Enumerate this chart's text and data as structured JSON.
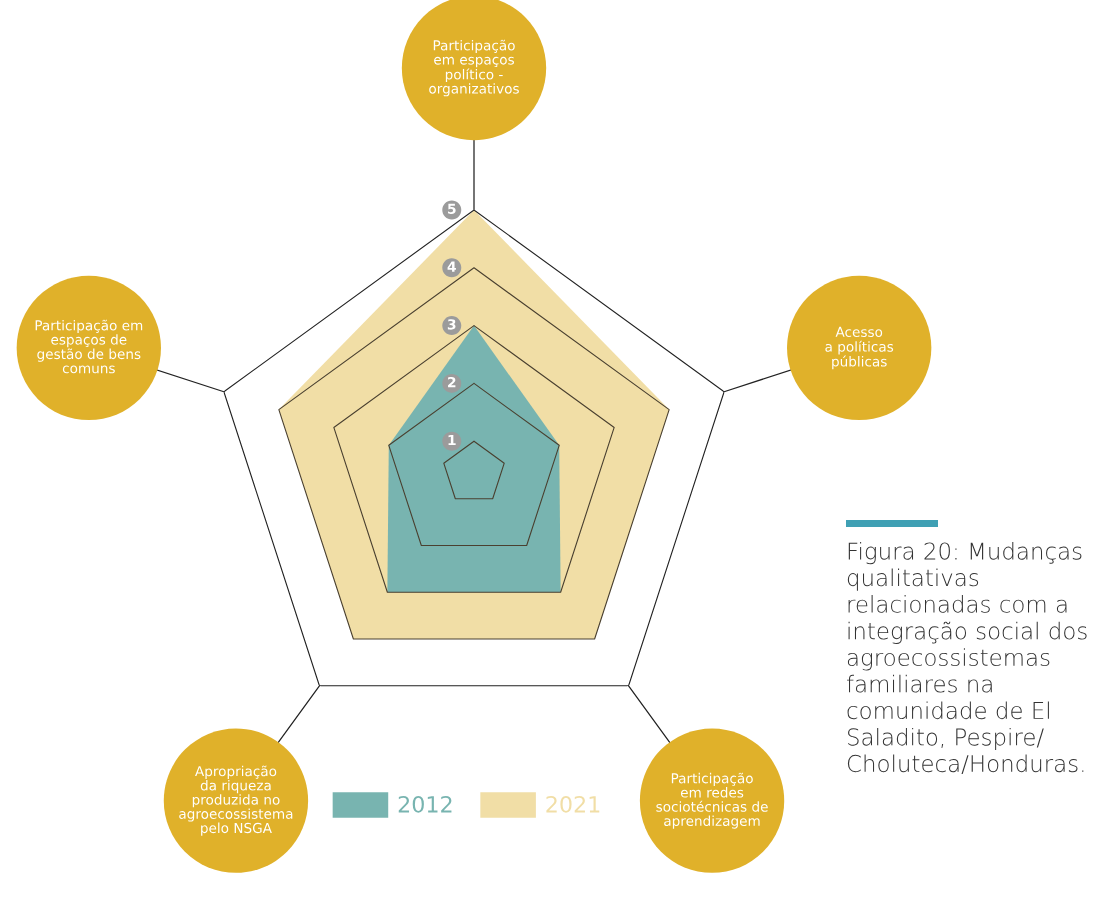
{
  "chart_data": {
    "type": "radar",
    "categories": [
      "Participação\nem espaços\npolítico -\norganizativos",
      "Acesso\na políticas\npúblicas",
      "Participação\nem redes\nsociotécnicas de\naprendizagem",
      "Apropriação\nda riqueza\nproduzida no\nagroecossistema\npelo NSGA",
      "Participação em\nespaços de\ngestão de bens\ncomuns"
    ],
    "series": [
      {
        "name": "2021",
        "color": "#f1dea6",
        "values": [
          5,
          4,
          4,
          4,
          4
        ]
      },
      {
        "name": "2012",
        "color": "#78b4b0",
        "values": [
          3,
          2,
          3,
          3,
          2
        ]
      }
    ],
    "ylim": [
      0.45,
      5
    ],
    "yticks": [
      1,
      2,
      3,
      4,
      5
    ],
    "grid": true,
    "legend": "bottom",
    "annotations": [
      "Figura 20: Mudanças\nqualitativas\nrelacionadas com a\nintegração social dos\nagroecossistemas\nfamiliares na\ncomunidade de El\nSaladito, Pespire/\nCholuteca/Honduras."
    ]
  }
}
